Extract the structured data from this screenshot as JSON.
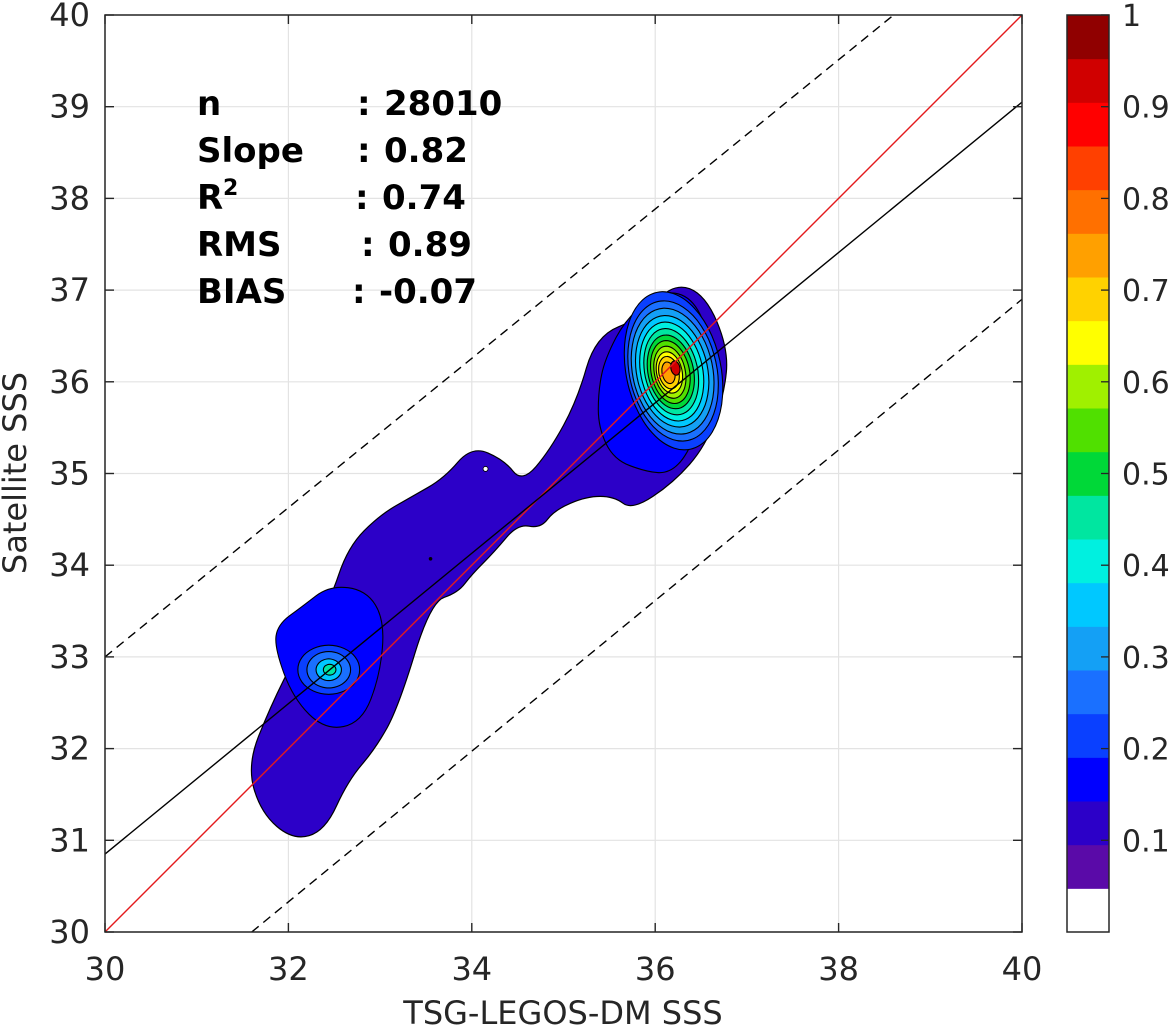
{
  "chart_data": {
    "type": "contour",
    "xlabel": "TSG-LEGOS-DM SSS",
    "ylabel": "Satellite SSS",
    "xlim": [
      30,
      40
    ],
    "ylim": [
      30,
      40
    ],
    "x_ticks": [
      "30",
      "32",
      "34",
      "36",
      "38",
      "40"
    ],
    "y_ticks": [
      "30",
      "31",
      "32",
      "33",
      "34",
      "35",
      "36",
      "37",
      "38",
      "39",
      "40"
    ],
    "grid": true,
    "stats": [
      {
        "name": "n",
        "sep": ":",
        "value": "28010"
      },
      {
        "name": "Slope",
        "sep": ":",
        "value": "0.82"
      },
      {
        "name": "R",
        "sup": "2",
        "sep": ":",
        "value": "0.74"
      },
      {
        "name": "RMS",
        "sep": ":",
        "value": "0.89"
      },
      {
        "name": "BIAS",
        "sep": ":",
        "value": "-0.07"
      }
    ],
    "lines": [
      {
        "role": "one-to-one",
        "color": "#e41a1c",
        "style": "solid",
        "points": [
          [
            30,
            30
          ],
          [
            40,
            40
          ]
        ]
      },
      {
        "role": "regression",
        "color": "#000000",
        "style": "solid",
        "points": [
          [
            30,
            30.85
          ],
          [
            40,
            39.05
          ]
        ]
      },
      {
        "role": "upper-bound",
        "color": "#000000",
        "style": "dashed",
        "points": [
          [
            30,
            33.0
          ],
          [
            38.6,
            40
          ]
        ]
      },
      {
        "role": "lower-bound",
        "color": "#000000",
        "style": "dashed",
        "points": [
          [
            31.6,
            30
          ],
          [
            40,
            36.9
          ]
        ]
      }
    ],
    "density_peaks": [
      {
        "x": 36.2,
        "y": 36.15,
        "max_level": 0.95
      },
      {
        "x": 32.45,
        "y": 32.85,
        "max_level": 0.45
      }
    ],
    "colorbar": {
      "ticks": [
        "0.1",
        "0.2",
        "0.3",
        "0.4",
        "0.5",
        "0.6",
        "0.7",
        "0.8",
        "0.9",
        "1"
      ],
      "range": [
        0,
        1
      ],
      "colors": [
        "#ffffff",
        "#5a0aa8",
        "#2c00c8",
        "#0000ff",
        "#0a40ff",
        "#1a70ff",
        "#14a0f5",
        "#00c8ff",
        "#00f0e0",
        "#00e6a0",
        "#00d838",
        "#50e000",
        "#a0f000",
        "#ffff00",
        "#ffd200",
        "#ffa000",
        "#ff7000",
        "#ff4000",
        "#ff0000",
        "#d00000",
        "#900000"
      ]
    }
  }
}
